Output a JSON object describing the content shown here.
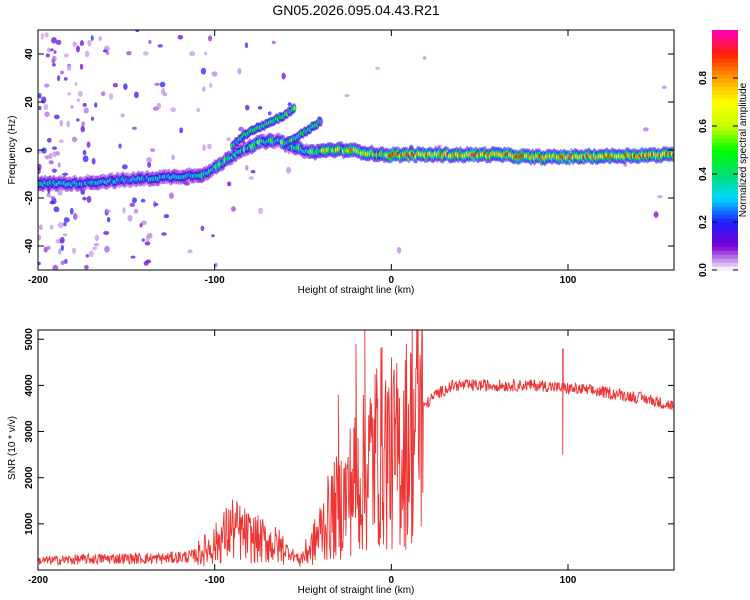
{
  "chart_data": [
    {
      "type": "heatmap",
      "title": "GN05.2026.095.04.43.R21",
      "xlabel": "Height of straight line (km)",
      "ylabel": "Frequency (Hz)",
      "xlim": [
        -200,
        160
      ],
      "ylim": [
        -50,
        50
      ],
      "xticks": [
        -200,
        -100,
        0,
        100
      ],
      "xtick_labels": [
        "-200",
        "-100",
        "0",
        "100"
      ],
      "yticks": [
        -40,
        -20,
        0,
        20,
        40
      ],
      "ytick_labels": [
        "-40",
        "-20",
        "0",
        "20",
        "40"
      ],
      "colorbar": {
        "label": "Normalized spectral amplitude",
        "range": [
          0,
          1
        ],
        "ticks": [
          0.0,
          0.2,
          0.4,
          0.6,
          0.8
        ],
        "tick_labels": [
          "0.0",
          "0.2",
          "0.4",
          "0.6",
          "0.8"
        ],
        "colormap": [
          "#ffffff",
          "#7b00d4",
          "#1e1eff",
          "#00d8ff",
          "#00e070",
          "#00ff00",
          "#c8ff00",
          "#ffff00",
          "#ffa000",
          "#ff2000",
          "#ff00c0"
        ]
      },
      "ridge_frequency_hz": {
        "x": [
          -200,
          -180,
          -160,
          -140,
          -120,
          -105,
          -95,
          -85,
          -75,
          -65,
          -55,
          -45,
          -35,
          -25,
          -15,
          -5,
          0,
          20,
          60,
          80,
          90,
          160
        ],
        "y": [
          -14,
          -14,
          -13,
          -12,
          -11,
          -10,
          -5,
          0,
          3,
          4,
          1,
          -1,
          0,
          0,
          -1,
          -2,
          -2,
          -2,
          -2,
          -3,
          -3,
          -2
        ]
      },
      "branches": [
        {
          "x": [
            -90,
            -80,
            -70,
            -62,
            -55
          ],
          "y": [
            2,
            8,
            11,
            14,
            17
          ]
        },
        {
          "x": [
            -60,
            -52,
            -46,
            -40
          ],
          "y": [
            3,
            6,
            9,
            12
          ]
        }
      ]
    },
    {
      "type": "line",
      "title": "",
      "xlabel": "Height of straight line (km)",
      "ylabel": "SNR (10 * v/v)",
      "xlim": [
        -200,
        160
      ],
      "ylim": [
        0,
        5200
      ],
      "xticks": [
        -200,
        -100,
        0,
        100
      ],
      "xtick_labels": [
        "-200",
        "-100",
        "0",
        "100"
      ],
      "yticks": [
        1000,
        2000,
        3000,
        4000,
        5000
      ],
      "ytick_labels": [
        "1000",
        "2000",
        "3000",
        "4000",
        "5000"
      ],
      "series": [
        {
          "color": "#ee3333",
          "envelope": {
            "x": [
              -200,
              -160,
              -130,
              -112,
              -100,
              -90,
              -80,
              -70,
              -60,
              -52,
              -45,
              -38,
              -30,
              -25,
              -22,
              -18,
              -14,
              -10,
              -5,
              0,
              5,
              10,
              15,
              20,
              25,
              35,
              50,
              70,
              85,
              95,
              110,
              130,
              145,
              160
            ],
            "y": [
              200,
              250,
              250,
              300,
              550,
              900,
              700,
              600,
              450,
              220,
              500,
              1000,
              1400,
              1600,
              1900,
              1900,
              2200,
              2500,
              2700,
              2500,
              2500,
              2900,
              3400,
              3600,
              3800,
              4000,
              4000,
              4000,
              4000,
              3950,
              3900,
              3800,
              3700,
              3550
            ]
          },
          "spikes": [
            {
              "x": -30,
              "y": 3800
            },
            {
              "x": -20,
              "y": 4900
            },
            {
              "x": -15,
              "y": 5200
            },
            {
              "x": -8,
              "y": 3500
            },
            {
              "x": 2,
              "y": 3300
            },
            {
              "x": 97,
              "y": 4800
            },
            {
              "x": 97,
              "y": 2500
            }
          ]
        }
      ]
    }
  ]
}
